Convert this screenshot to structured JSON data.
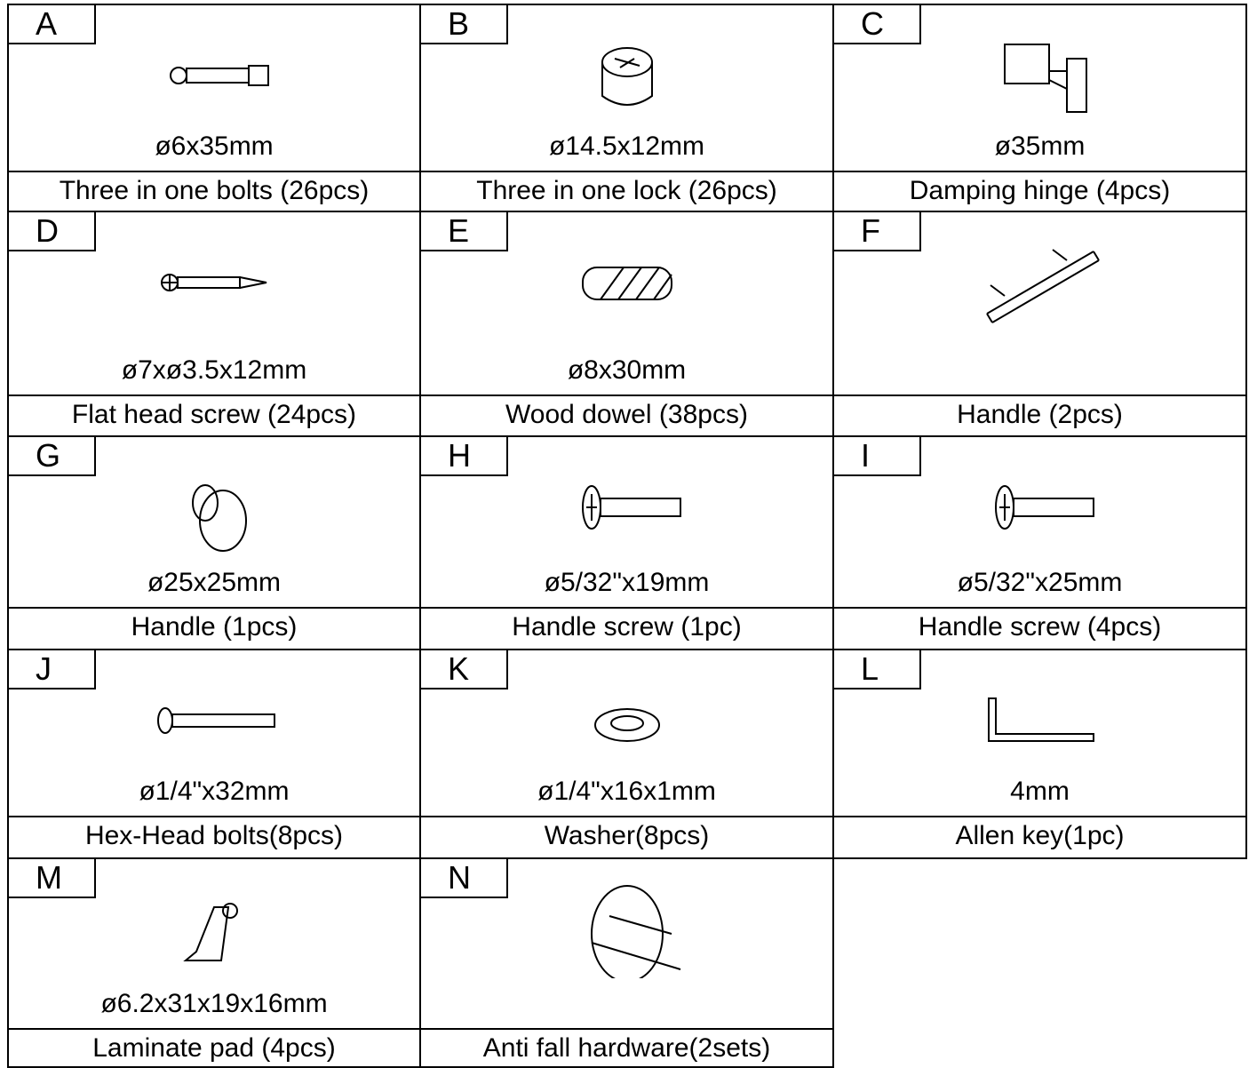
{
  "parts": [
    {
      "letter": "A",
      "size": "ø6x35mm",
      "name": "Three in one bolts (26pcs)"
    },
    {
      "letter": "B",
      "size": "ø14.5x12mm",
      "name": "Three in one lock (26pcs)"
    },
    {
      "letter": "C",
      "size": "ø35mm",
      "name": "Damping hinge (4pcs)"
    },
    {
      "letter": "D",
      "size": "ø7xø3.5x12mm",
      "name": "Flat head screw (24pcs)"
    },
    {
      "letter": "E",
      "size": "ø8x30mm",
      "name": "Wood dowel (38pcs)"
    },
    {
      "letter": "F",
      "size": null,
      "name": "Handle (2pcs)"
    },
    {
      "letter": "G",
      "size": "ø25x25mm",
      "name": "Handle (1pcs)"
    },
    {
      "letter": "H",
      "size": "ø5/32\"x19mm",
      "name": "Handle screw (1pc)"
    },
    {
      "letter": "I",
      "size": "ø5/32\"x25mm",
      "name": "Handle screw (4pcs)"
    },
    {
      "letter": "J",
      "size": "ø1/4\"x32mm",
      "name": "Hex-Head bolts(8pcs)"
    },
    {
      "letter": "K",
      "size": "ø1/4\"x16x1mm",
      "name": "Washer(8pcs)"
    },
    {
      "letter": "L",
      "size": "4mm",
      "name": "Allen key(1pc)"
    },
    {
      "letter": "M",
      "size": "ø6.2x31x19x16mm",
      "name": "Laminate pad (4pcs)"
    },
    {
      "letter": "N",
      "size": null,
      "name": "Anti fall hardware(2sets)"
    }
  ]
}
